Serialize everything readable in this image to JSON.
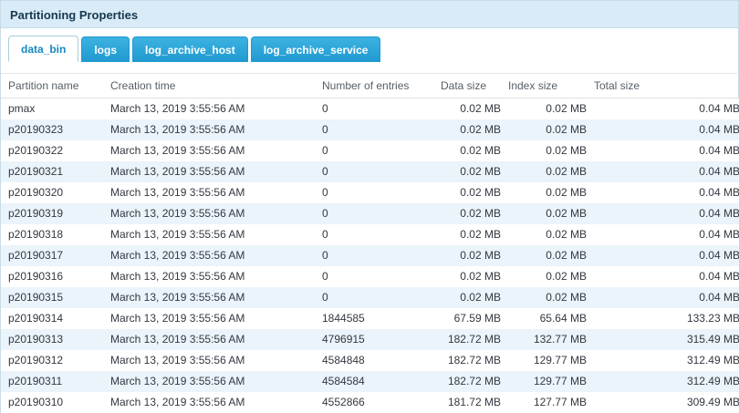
{
  "header": {
    "title": "Partitioning Properties"
  },
  "tabs": [
    {
      "label": "data_bin",
      "active": true
    },
    {
      "label": "logs",
      "active": false
    },
    {
      "label": "log_archive_host",
      "active": false
    },
    {
      "label": "log_archive_service",
      "active": false
    }
  ],
  "colors": {
    "header_bg": "#d9ebf7",
    "tab_active_text": "#1787c2",
    "tab_inactive_bg": "#29a3d6",
    "row_alt_bg": "#eaf4fa"
  },
  "table": {
    "columns": [
      "Partition name",
      "Creation time",
      "Number of entries",
      "Data size",
      "Index size",
      "Total size"
    ],
    "rows": [
      [
        "pmax",
        "March 13, 2019 3:55:56 AM",
        "0",
        "0.02 MB",
        "0.02 MB",
        "0.04 MB"
      ],
      [
        "p20190323",
        "March 13, 2019 3:55:56 AM",
        "0",
        "0.02 MB",
        "0.02 MB",
        "0.04 MB"
      ],
      [
        "p20190322",
        "March 13, 2019 3:55:56 AM",
        "0",
        "0.02 MB",
        "0.02 MB",
        "0.04 MB"
      ],
      [
        "p20190321",
        "March 13, 2019 3:55:56 AM",
        "0",
        "0.02 MB",
        "0.02 MB",
        "0.04 MB"
      ],
      [
        "p20190320",
        "March 13, 2019 3:55:56 AM",
        "0",
        "0.02 MB",
        "0.02 MB",
        "0.04 MB"
      ],
      [
        "p20190319",
        "March 13, 2019 3:55:56 AM",
        "0",
        "0.02 MB",
        "0.02 MB",
        "0.04 MB"
      ],
      [
        "p20190318",
        "March 13, 2019 3:55:56 AM",
        "0",
        "0.02 MB",
        "0.02 MB",
        "0.04 MB"
      ],
      [
        "p20190317",
        "March 13, 2019 3:55:56 AM",
        "0",
        "0.02 MB",
        "0.02 MB",
        "0.04 MB"
      ],
      [
        "p20190316",
        "March 13, 2019 3:55:56 AM",
        "0",
        "0.02 MB",
        "0.02 MB",
        "0.04 MB"
      ],
      [
        "p20190315",
        "March 13, 2019 3:55:56 AM",
        "0",
        "0.02 MB",
        "0.02 MB",
        "0.04 MB"
      ],
      [
        "p20190314",
        "March 13, 2019 3:55:56 AM",
        "1844585",
        "67.59 MB",
        "65.64 MB",
        "133.23 MB"
      ],
      [
        "p20190313",
        "March 13, 2019 3:55:56 AM",
        "4796915",
        "182.72 MB",
        "132.77 MB",
        "315.49 MB"
      ],
      [
        "p20190312",
        "March 13, 2019 3:55:56 AM",
        "4584848",
        "182.72 MB",
        "129.77 MB",
        "312.49 MB"
      ],
      [
        "p20190311",
        "March 13, 2019 3:55:56 AM",
        "4584584",
        "182.72 MB",
        "129.77 MB",
        "312.49 MB"
      ],
      [
        "p20190310",
        "March 13, 2019 3:55:56 AM",
        "4552866",
        "181.72 MB",
        "127.77 MB",
        "309.49 MB"
      ]
    ]
  }
}
